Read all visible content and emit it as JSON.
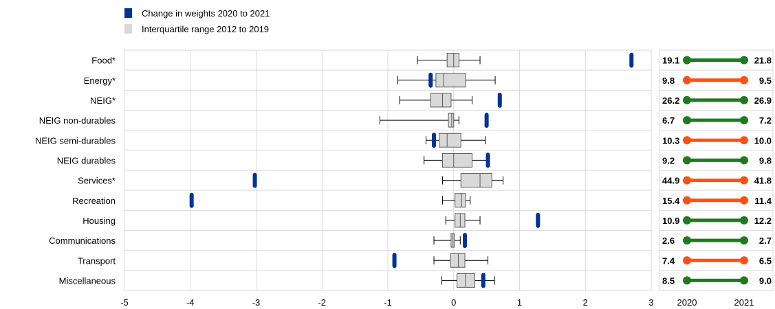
{
  "chart_data": {
    "type": "box-and-dumbbell",
    "legend": [
      {
        "label": "Change in weights 2020 to 2021",
        "color": "#003399"
      },
      {
        "label": "Interquartile range 2012 to 2019",
        "color": "#d9d9d9"
      }
    ],
    "x_ticks": [
      "-5",
      "-4",
      "-3",
      "-2",
      "-1",
      "0",
      "1",
      "2",
      "3"
    ],
    "xlim": [
      -5,
      3
    ],
    "year_labels": [
      "2020",
      "2021"
    ],
    "categories": [
      "Food*",
      "Energy*",
      "NEIG*",
      "NEIG non-durables",
      "NEIG semi-durables",
      "NEIG durables",
      "Services*",
      "Recreation",
      "Housing",
      "Communications",
      "Transport",
      "Miscellaneous"
    ],
    "boxes": [
      {
        "category": "Food*",
        "whisker_low": -0.55,
        "q1": -0.1,
        "median": 0.0,
        "q3": 0.08,
        "whisker_high": 0.4
      },
      {
        "category": "Energy*",
        "whisker_low": -0.85,
        "q1": -0.27,
        "median": -0.15,
        "q3": 0.18,
        "whisker_high": 0.63
      },
      {
        "category": "NEIG*",
        "whisker_low": -0.82,
        "q1": -0.35,
        "median": -0.17,
        "q3": -0.04,
        "whisker_high": 0.28
      },
      {
        "category": "NEIG non-durables",
        "whisker_low": -1.12,
        "q1": -0.08,
        "median": -0.03,
        "q3": 0.0,
        "whisker_high": 0.08
      },
      {
        "category": "NEIG semi-durables",
        "whisker_low": -0.42,
        "q1": -0.22,
        "median": -0.1,
        "q3": 0.11,
        "whisker_high": 0.48
      },
      {
        "category": "NEIG durables",
        "whisker_low": -0.45,
        "q1": -0.17,
        "median": 0.0,
        "q3": 0.28,
        "whisker_high": 0.5
      },
      {
        "category": "Services*",
        "whisker_low": -0.17,
        "q1": 0.11,
        "median": 0.4,
        "q3": 0.58,
        "whisker_high": 0.75
      },
      {
        "category": "Recreation",
        "whisker_low": -0.17,
        "q1": 0.02,
        "median": 0.12,
        "q3": 0.18,
        "whisker_high": 0.25
      },
      {
        "category": "Housing",
        "whisker_low": -0.12,
        "q1": 0.02,
        "median": 0.1,
        "q3": 0.17,
        "whisker_high": 0.4
      },
      {
        "category": "Communications",
        "whisker_low": -0.3,
        "q1": -0.04,
        "median": -0.01,
        "q3": 0.01,
        "whisker_high": 0.1
      },
      {
        "category": "Transport",
        "whisker_low": -0.3,
        "q1": -0.05,
        "median": 0.07,
        "q3": 0.17,
        "whisker_high": 0.52
      },
      {
        "category": "Miscellaneous",
        "whisker_low": -0.18,
        "q1": 0.05,
        "median": 0.18,
        "q3": 0.32,
        "whisker_high": 0.62
      }
    ],
    "changes": [
      2.7,
      -0.35,
      0.7,
      0.5,
      -0.3,
      0.52,
      -3.02,
      -3.98,
      1.28,
      0.17,
      -0.9,
      0.45
    ],
    "weights_2020": [
      "19.1",
      "9.8",
      "26.2",
      "6.7",
      "10.3",
      "9.2",
      "44.9",
      "15.4",
      "10.9",
      "2.6",
      "7.4",
      "8.5"
    ],
    "weights_2021": [
      "21.8",
      "9.5",
      "26.9",
      "7.2",
      "10.0",
      "9.8",
      "41.8",
      "11.4",
      "12.2",
      "2.7",
      "6.5",
      "9.0"
    ],
    "colors": {
      "increase": "#1e7b1e",
      "decrease": "#ff5014",
      "change_marker": "#003399",
      "box_fill": "#d9d9d9",
      "box_stroke": "#595959",
      "grid": "#d9d9d9"
    }
  }
}
